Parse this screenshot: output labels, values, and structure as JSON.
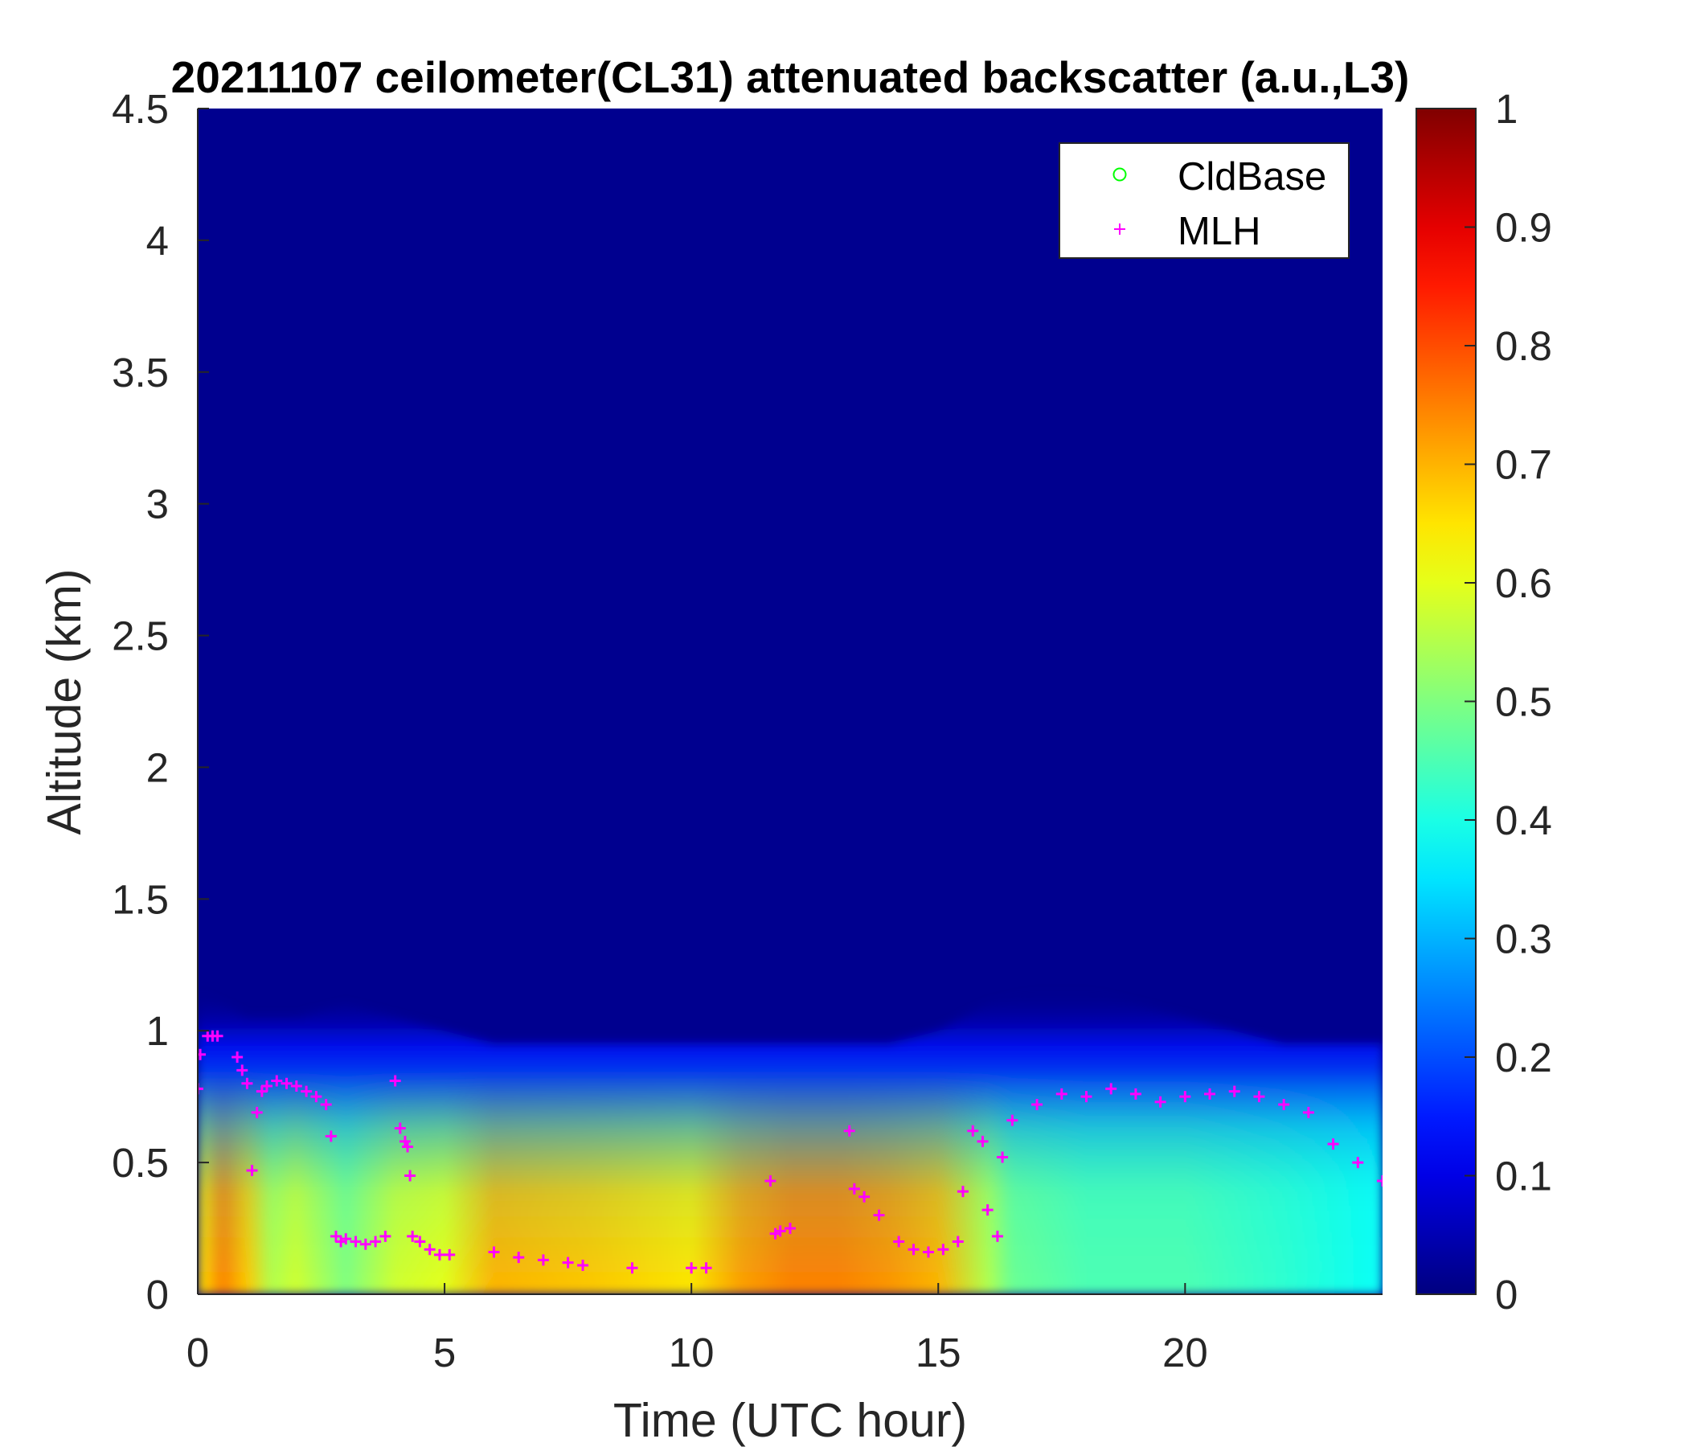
{
  "chart_data": {
    "type": "heatmap",
    "title": "20211107 ceilometer(CL31) attenuated backscatter (a.u.,L3)",
    "xlabel": "Time (UTC hour)",
    "ylabel": "Altitude (km)",
    "xlim": [
      0,
      24
    ],
    "ylim": [
      0,
      4.5
    ],
    "xticks": [
      0,
      5,
      10,
      15,
      20
    ],
    "xtick_labels": [
      "0",
      "5",
      "10",
      "15",
      "20"
    ],
    "yticks": [
      0,
      0.5,
      1,
      1.5,
      2,
      2.5,
      3,
      3.5,
      4,
      4.5
    ],
    "ytick_labels": [
      "0",
      "0.5",
      "1",
      "1.5",
      "2",
      "2.5",
      "3",
      "3.5",
      "4",
      "4.5"
    ],
    "colorbar": {
      "colormap": "jet",
      "clim": [
        0,
        1
      ],
      "ticks": [
        0,
        0.1,
        0.2,
        0.3,
        0.4,
        0.5,
        0.6,
        0.7,
        0.8,
        0.9,
        1
      ],
      "tick_labels": [
        "0",
        "0.1",
        "0.2",
        "0.3",
        "0.4",
        "0.5",
        "0.6",
        "0.7",
        "0.8",
        "0.9",
        "1"
      ]
    },
    "legend": {
      "location": "top-right",
      "entries": [
        {
          "label": "CldBase",
          "marker": "circle",
          "color": "#00ff00"
        },
        {
          "label": "MLH",
          "marker": "plus",
          "color": "#ff00ff"
        }
      ]
    },
    "boundary_layer_top_km": {
      "x": [
        0,
        0.5,
        1,
        2,
        3,
        4,
        5,
        6,
        8,
        10,
        12,
        13,
        14,
        15,
        16,
        17,
        18,
        19,
        20,
        21,
        22,
        23,
        24
      ],
      "y": [
        1.15,
        1.1,
        1.05,
        1.05,
        1.1,
        1.05,
        1.0,
        0.95,
        0.95,
        0.95,
        0.95,
        0.95,
        0.95,
        1.0,
        1.1,
        1.15,
        1.15,
        1.1,
        1.05,
        1.0,
        0.95,
        0.95,
        0.95
      ]
    },
    "surface_intensity": {
      "x": [
        0,
        0.5,
        1,
        1.5,
        2,
        3,
        4,
        5,
        6,
        8,
        10,
        11,
        12,
        13,
        14,
        15,
        16,
        16.5,
        18,
        20,
        22,
        23,
        24
      ],
      "values": [
        0.65,
        0.75,
        0.68,
        0.55,
        0.58,
        0.5,
        0.58,
        0.6,
        0.7,
        0.68,
        0.65,
        0.72,
        0.75,
        0.75,
        0.73,
        0.7,
        0.55,
        0.48,
        0.45,
        0.45,
        0.42,
        0.4,
        0.38
      ]
    },
    "MLH": {
      "x": [
        0,
        0.05,
        0.2,
        0.3,
        0.4,
        0.8,
        0.9,
        1.0,
        1.1,
        1.2,
        1.3,
        1.4,
        1.6,
        1.8,
        2.0,
        2.2,
        2.4,
        2.6,
        2.7,
        2.8,
        2.9,
        3.0,
        3.2,
        3.4,
        3.6,
        3.8,
        4.0,
        4.1,
        4.2,
        4.25,
        4.3,
        4.35,
        4.5,
        4.7,
        4.9,
        5.1,
        6.0,
        6.5,
        7.0,
        7.5,
        7.8,
        8.8,
        10.0,
        10.3,
        11.6,
        11.7,
        11.8,
        12.0,
        13.2,
        13.3,
        13.5,
        13.8,
        14.2,
        14.5,
        14.8,
        15.1,
        15.4,
        15.5,
        15.7,
        15.9,
        16.0,
        16.2,
        16.3,
        16.5,
        17.0,
        17.5,
        18.0,
        18.5,
        19.0,
        19.5,
        20.0,
        20.5,
        21.0,
        21.5,
        22.0,
        22.5,
        23.0,
        23.5,
        24.0
      ],
      "y": [
        0.78,
        0.91,
        0.98,
        0.98,
        0.98,
        0.9,
        0.85,
        0.8,
        0.47,
        0.69,
        0.77,
        0.79,
        0.81,
        0.8,
        0.79,
        0.77,
        0.75,
        0.72,
        0.6,
        0.22,
        0.2,
        0.21,
        0.2,
        0.19,
        0.2,
        0.22,
        0.81,
        0.63,
        0.58,
        0.56,
        0.45,
        0.22,
        0.2,
        0.17,
        0.15,
        0.15,
        0.16,
        0.14,
        0.13,
        0.12,
        0.11,
        0.1,
        0.1,
        0.1,
        0.43,
        0.23,
        0.24,
        0.25,
        0.62,
        0.4,
        0.37,
        0.3,
        0.2,
        0.17,
        0.16,
        0.17,
        0.2,
        0.39,
        0.62,
        0.58,
        0.32,
        0.22,
        0.52,
        0.66,
        0.72,
        0.76,
        0.75,
        0.78,
        0.76,
        0.73,
        0.75,
        0.76,
        0.77,
        0.75,
        0.72,
        0.69,
        0.57,
        0.5,
        0.43
      ]
    },
    "CldBase": {
      "x": [],
      "y": []
    }
  }
}
